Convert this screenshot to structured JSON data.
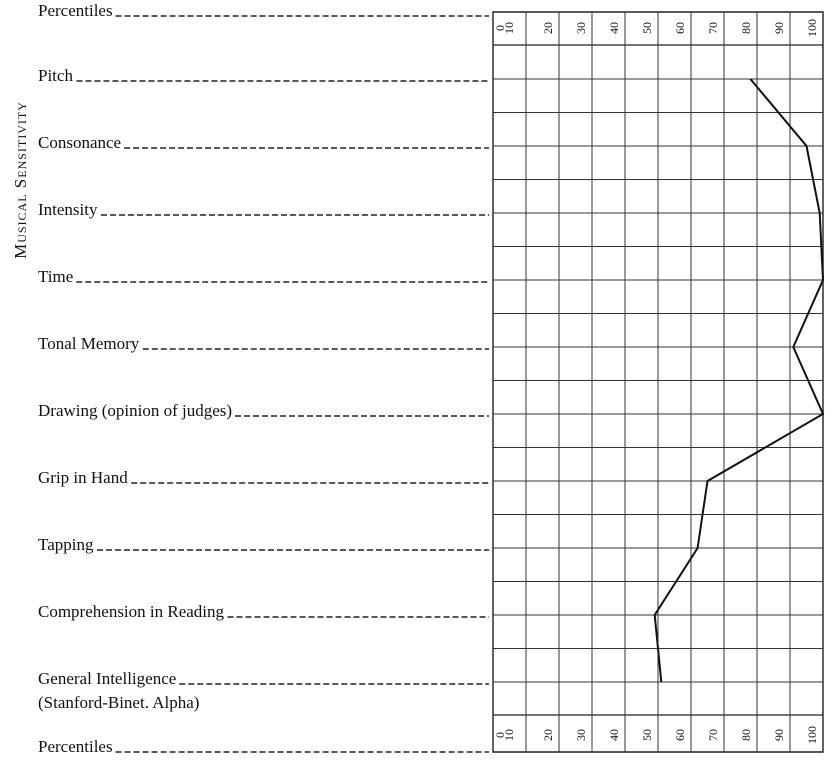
{
  "chart_data": {
    "type": "line",
    "orientation": "horizontal",
    "xlabel": "Percentiles",
    "group_label": "Musical Sensitivity",
    "categories": [
      "Pitch",
      "Consonance",
      "Intensity",
      "Time",
      "Tonal Memory",
      "Drawing (opinion of judges)",
      "Grip in Hand",
      "Tapping",
      "Comprehension in Reading",
      "General Intelligence"
    ],
    "annotations": [
      "(Stanford-Binet. Alpha)"
    ],
    "values": [
      78,
      95,
      99,
      100,
      91,
      100,
      65,
      62,
      49,
      51
    ],
    "color": "#111111",
    "xlim": [
      0,
      100
    ],
    "xticks": [
      0,
      10,
      20,
      30,
      40,
      50,
      60,
      70,
      80,
      90,
      100
    ],
    "grid": true
  }
}
